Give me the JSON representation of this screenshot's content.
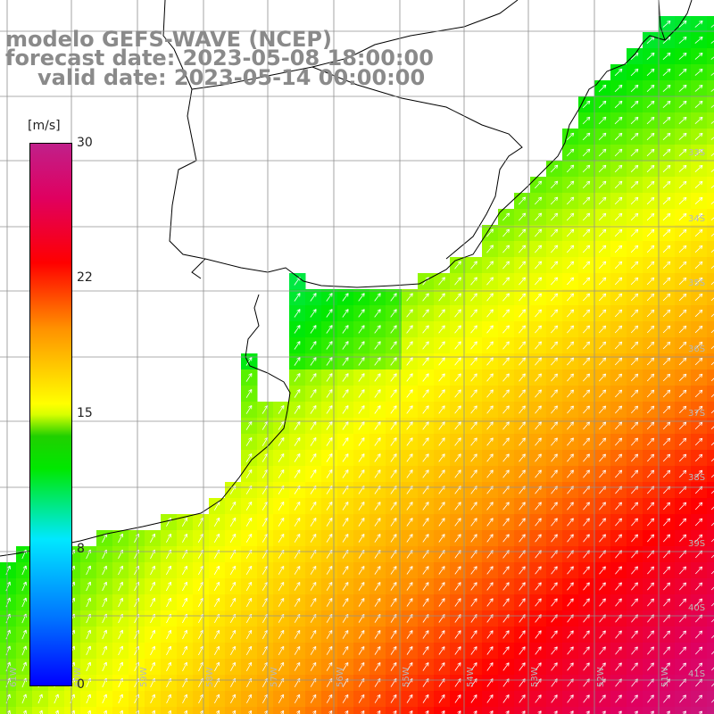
{
  "title": {
    "line1": "modelo GEFS-WAVE (NCEP)",
    "line2": "forecast date: 2023-05-08 18:00:00",
    "line3": "valid date: 2023-05-14 00:00:00"
  },
  "colorbar": {
    "unit": "[m/s]",
    "ticks": [
      "30",
      "22",
      "15",
      "8",
      "0"
    ],
    "range": [
      0,
      30
    ],
    "colors": [
      "#0000ff",
      "#0070ff",
      "#00e8ff",
      "#00e800",
      "#ffff00",
      "#ff9000",
      "#ff0000",
      "#c0208a"
    ]
  },
  "grid": {
    "lat_labels": [
      "33S",
      "34S",
      "35S",
      "36S",
      "37S",
      "38S",
      "39S",
      "40S",
      "41S"
    ],
    "lon_labels": [
      "61W",
      "60W",
      "59W",
      "58W",
      "57W",
      "56W",
      "55W",
      "54W",
      "53W",
      "52W",
      "51W"
    ]
  },
  "field": {
    "variable": "wind speed",
    "low_region_color": "#0080ff",
    "mid_region_color": "#00f080",
    "high_region_color": "#f0e000",
    "peak_region_color": "#ffb000"
  },
  "map": {
    "land_color": "#ffffff",
    "coastline_color": "#000000",
    "gridline_color": "#909090"
  }
}
